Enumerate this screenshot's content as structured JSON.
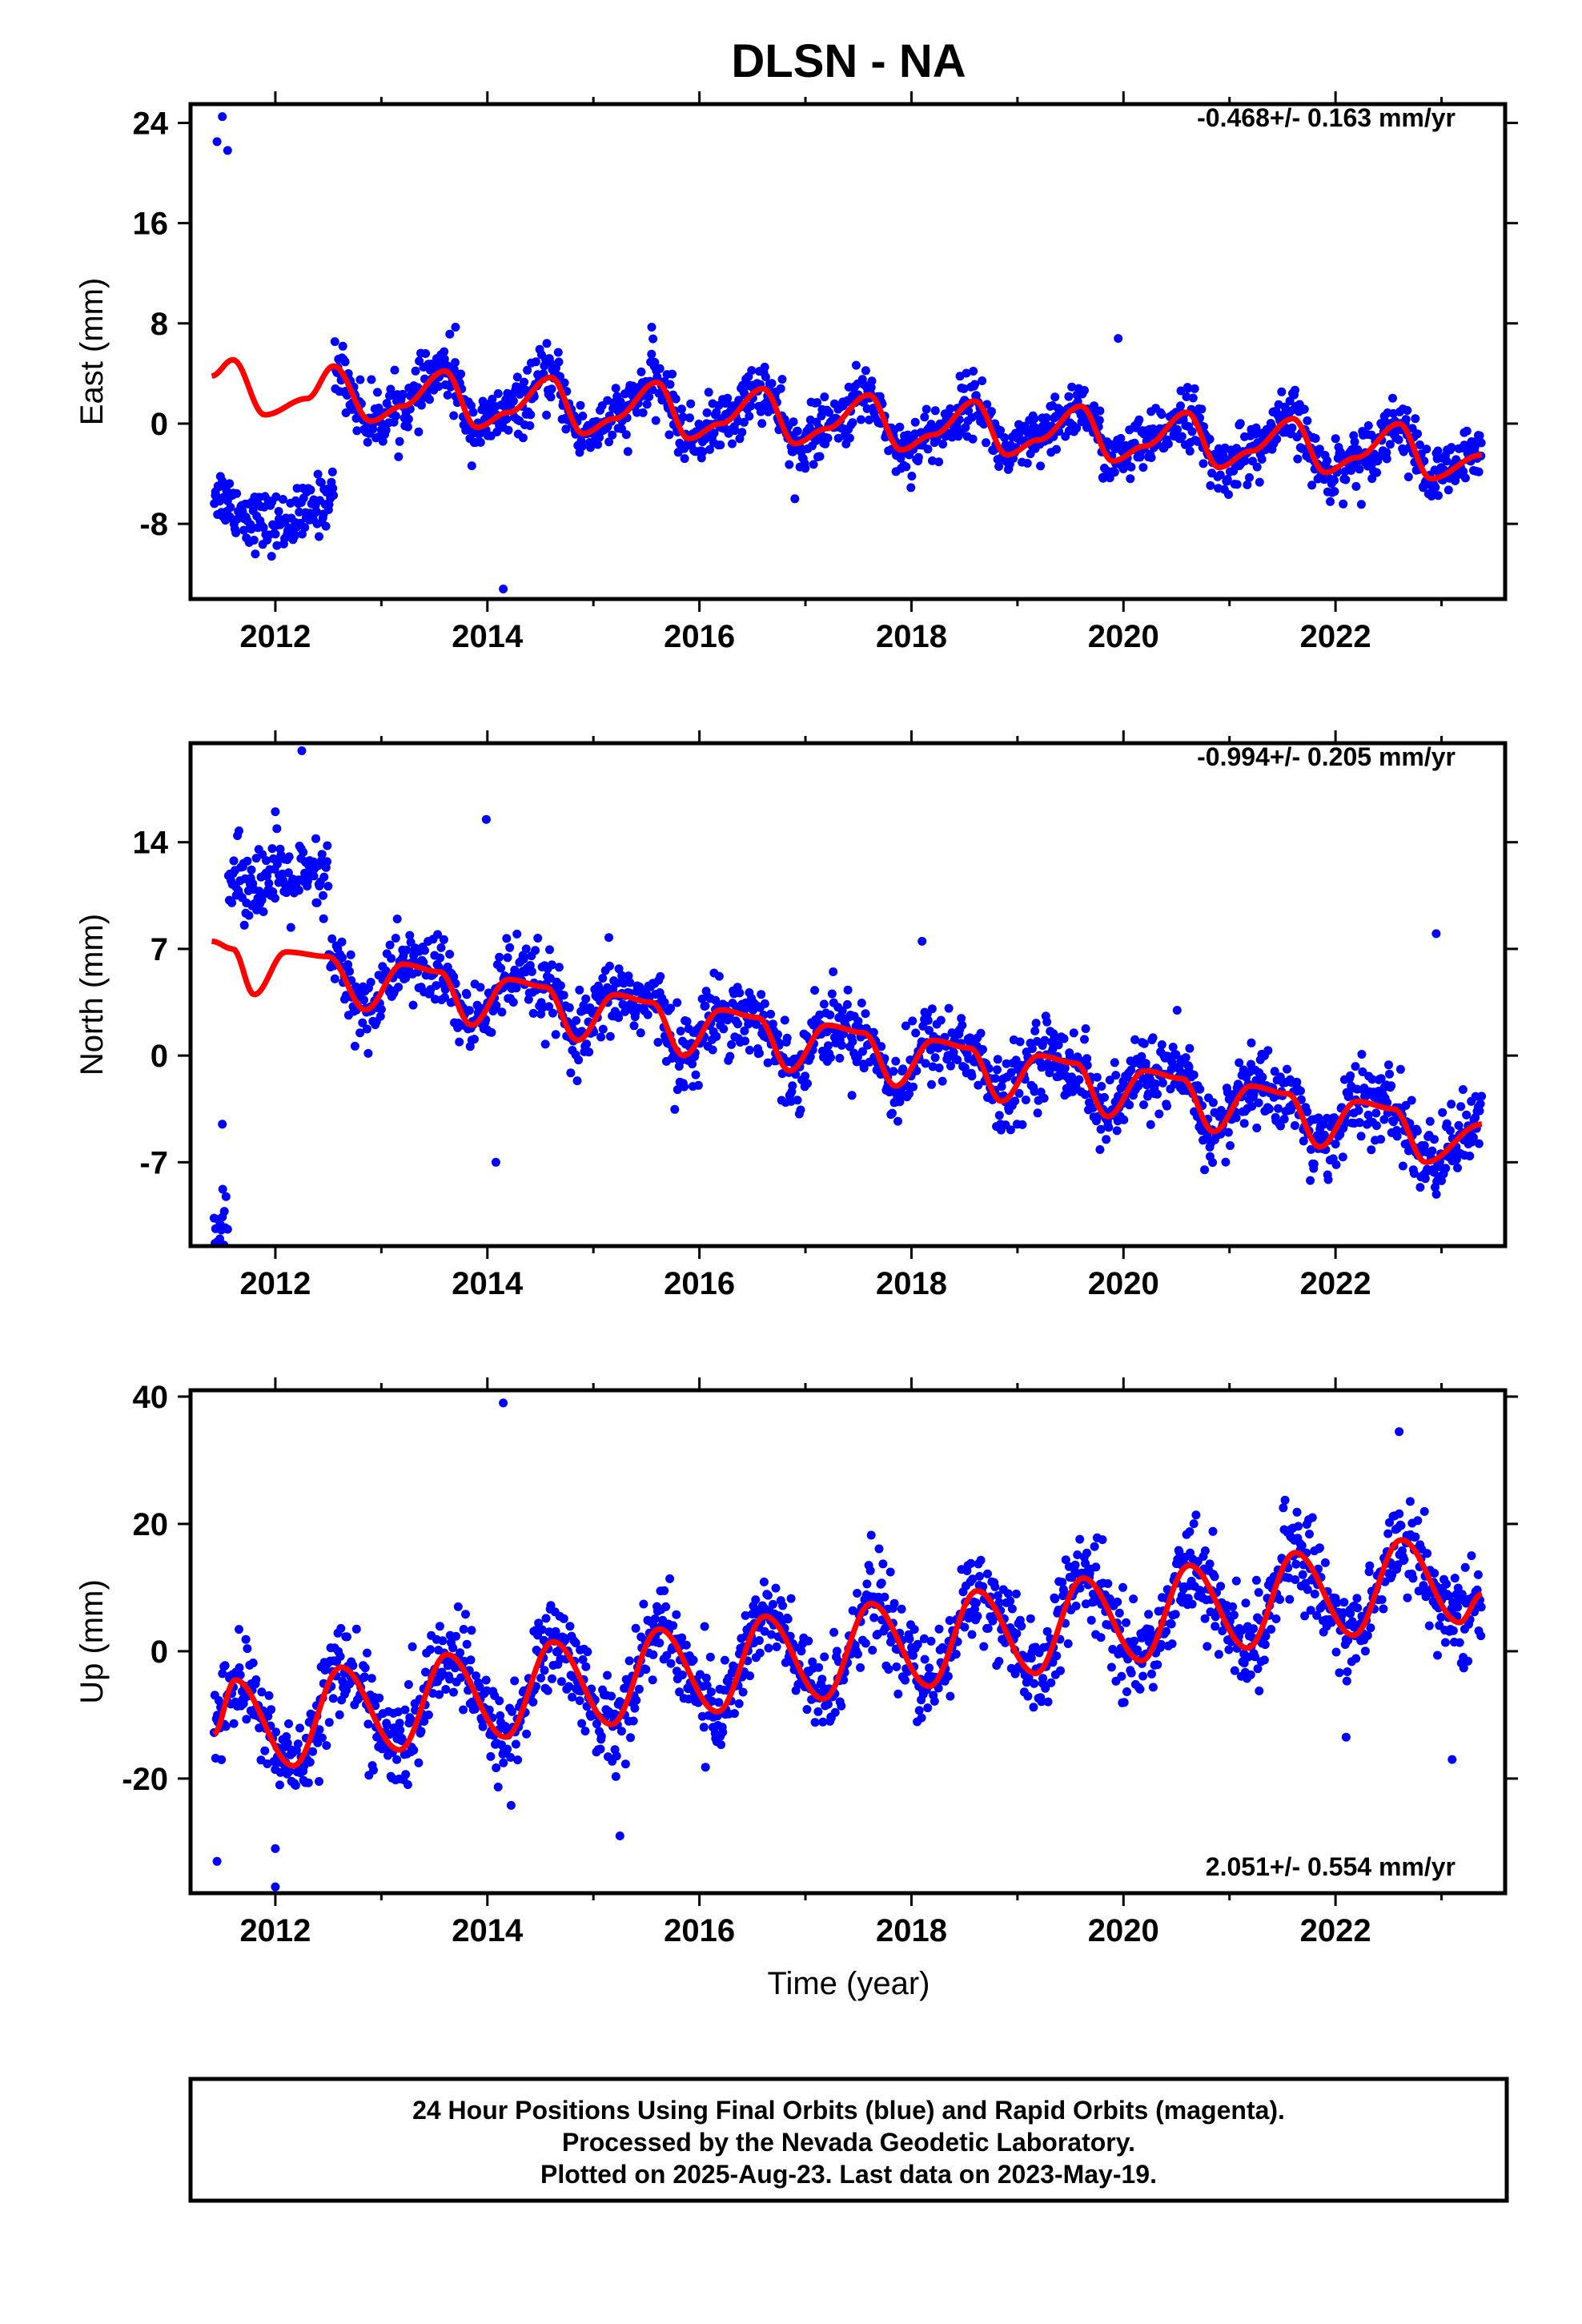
{
  "title": "DLSN - NA",
  "colors": {
    "final": "#0000ff",
    "model": "#ff0000",
    "frame": "#000000"
  },
  "xaxis": {
    "label": "Time (year)",
    "range": [
      2011.2,
      2023.6
    ],
    "ticks": [
      "2012",
      "2014",
      "2016",
      "2018",
      "2020",
      "2022"
    ]
  },
  "footer": {
    "line1": "24 Hour Positions Using Final Orbits (blue) and Rapid Orbits (magenta).",
    "line2": "Processed by the Nevada Geodetic Laboratory.",
    "line3": "Plotted on 2025-Aug-23. Last data on 2023-May-19."
  },
  "chart_data": [
    {
      "type": "scatter",
      "component": "east",
      "ylabel": "East (mm)",
      "rate": "-0.468+/- 0.163 mm/yr",
      "rate_position": "top-right",
      "ylim": [
        -14,
        25.5
      ],
      "yticks": [
        "24",
        "16",
        "8",
        "0",
        "-8"
      ],
      "xlim": [
        2011.2,
        2023.6
      ],
      "data_start": 2011.42,
      "data_end": 2023.38,
      "outliers": [
        {
          "x": 2011.5,
          "y": 24.5
        },
        {
          "x": 2011.45,
          "y": 22.5
        },
        {
          "x": 2011.55,
          "y": 21.8
        },
        {
          "x": 2014.15,
          "y": -13.2
        },
        {
          "x": 2016.9,
          "y": -6
        },
        {
          "x": 2019.95,
          "y": 6.8
        },
        {
          "x": 2013.7,
          "y": 7.7
        },
        {
          "x": 2015.55,
          "y": 7.7
        }
      ],
      "model": [
        {
          "x": 2011.4,
          "y": 3.8
        },
        {
          "x": 2011.6,
          "y": 5.1
        },
        {
          "x": 2011.9,
          "y": 0.7
        },
        {
          "x": 2012.3,
          "y": 2.0
        },
        {
          "x": 2012.55,
          "y": 4.6
        },
        {
          "x": 2012.9,
          "y": 0.2
        },
        {
          "x": 2013.2,
          "y": 1.4
        },
        {
          "x": 2013.6,
          "y": 4.2
        },
        {
          "x": 2013.9,
          "y": -0.3
        },
        {
          "x": 2014.2,
          "y": 0.9
        },
        {
          "x": 2014.6,
          "y": 3.7
        },
        {
          "x": 2014.9,
          "y": -0.8
        },
        {
          "x": 2015.2,
          "y": 0.4
        },
        {
          "x": 2015.6,
          "y": 3.3
        },
        {
          "x": 2015.9,
          "y": -1.2
        },
        {
          "x": 2016.2,
          "y": 0.0
        },
        {
          "x": 2016.6,
          "y": 2.8
        },
        {
          "x": 2016.9,
          "y": -1.6
        },
        {
          "x": 2017.2,
          "y": -0.4
        },
        {
          "x": 2017.6,
          "y": 2.3
        },
        {
          "x": 2017.9,
          "y": -2.1
        },
        {
          "x": 2018.2,
          "y": -0.9
        },
        {
          "x": 2018.6,
          "y": 1.8
        },
        {
          "x": 2018.9,
          "y": -2.5
        },
        {
          "x": 2019.2,
          "y": -1.3
        },
        {
          "x": 2019.6,
          "y": 1.4
        },
        {
          "x": 2019.9,
          "y": -3.0
        },
        {
          "x": 2020.2,
          "y": -1.8
        },
        {
          "x": 2020.6,
          "y": 0.9
        },
        {
          "x": 2020.9,
          "y": -3.5
        },
        {
          "x": 2021.2,
          "y": -2.2
        },
        {
          "x": 2021.6,
          "y": 0.4
        },
        {
          "x": 2021.9,
          "y": -3.9
        },
        {
          "x": 2022.2,
          "y": -2.7
        },
        {
          "x": 2022.6,
          "y": 0.0
        },
        {
          "x": 2022.9,
          "y": -4.4
        },
        {
          "x": 2023.38,
          "y": -2.5
        }
      ]
    },
    {
      "type": "scatter",
      "component": "north",
      "ylabel": "North (mm)",
      "rate": "-0.994+/- 0.205 mm/yr",
      "rate_position": "top-right",
      "ylim": [
        -12.5,
        20.5
      ],
      "yticks": [
        "14",
        "7",
        "0",
        "-7"
      ],
      "xlim": [
        2011.2,
        2023.6
      ],
      "data_start": 2011.42,
      "data_end": 2023.38,
      "outliers": [
        {
          "x": 2012.25,
          "y": 20
        },
        {
          "x": 2012.0,
          "y": 16
        },
        {
          "x": 2013.99,
          "y": 15.5
        },
        {
          "x": 2014.08,
          "y": -7
        },
        {
          "x": 2018.1,
          "y": 7.5
        },
        {
          "x": 2022.95,
          "y": 8.0
        },
        {
          "x": 2011.5,
          "y": -4.5
        }
      ],
      "model": [
        {
          "x": 2011.4,
          "y": 7.5
        },
        {
          "x": 2011.6,
          "y": 7.0
        },
        {
          "x": 2011.8,
          "y": 4.0
        },
        {
          "x": 2012.1,
          "y": 6.8
        },
        {
          "x": 2012.5,
          "y": 6.5
        },
        {
          "x": 2012.85,
          "y": 3.0
        },
        {
          "x": 2013.2,
          "y": 6.0
        },
        {
          "x": 2013.55,
          "y": 5.5
        },
        {
          "x": 2013.85,
          "y": 2.0
        },
        {
          "x": 2014.2,
          "y": 5.0
        },
        {
          "x": 2014.55,
          "y": 4.5
        },
        {
          "x": 2014.85,
          "y": 1.0
        },
        {
          "x": 2015.2,
          "y": 4.0
        },
        {
          "x": 2015.55,
          "y": 3.5
        },
        {
          "x": 2015.85,
          "y": 0.0
        },
        {
          "x": 2016.2,
          "y": 3.0
        },
        {
          "x": 2016.55,
          "y": 2.5
        },
        {
          "x": 2016.85,
          "y": -1.0
        },
        {
          "x": 2017.2,
          "y": 2.0
        },
        {
          "x": 2017.55,
          "y": 1.5
        },
        {
          "x": 2017.85,
          "y": -2.0
        },
        {
          "x": 2018.2,
          "y": 1.0
        },
        {
          "x": 2018.55,
          "y": 0.5
        },
        {
          "x": 2018.85,
          "y": -3.0
        },
        {
          "x": 2019.2,
          "y": 0.0
        },
        {
          "x": 2019.55,
          "y": -0.5
        },
        {
          "x": 2019.85,
          "y": -4.0
        },
        {
          "x": 2020.2,
          "y": -1.0
        },
        {
          "x": 2020.55,
          "y": -1.5
        },
        {
          "x": 2020.85,
          "y": -5.0
        },
        {
          "x": 2021.2,
          "y": -2.0
        },
        {
          "x": 2021.55,
          "y": -2.5
        },
        {
          "x": 2021.85,
          "y": -6.0
        },
        {
          "x": 2022.2,
          "y": -3.0
        },
        {
          "x": 2022.55,
          "y": -3.5
        },
        {
          "x": 2022.85,
          "y": -7.0
        },
        {
          "x": 2023.38,
          "y": -4.5
        }
      ]
    },
    {
      "type": "scatter",
      "component": "up",
      "ylabel": "Up (mm)",
      "rate": "2.051+/- 0.554 mm/yr",
      "rate_position": "bottom-right",
      "ylim": [
        -38,
        41
      ],
      "yticks": [
        "40",
        "20",
        "0",
        "-20"
      ],
      "xlim": [
        2011.2,
        2023.6
      ],
      "data_start": 2011.42,
      "data_end": 2023.38,
      "outliers": [
        {
          "x": 2014.15,
          "y": 39
        },
        {
          "x": 2022.6,
          "y": 34.5
        },
        {
          "x": 2012.0,
          "y": -37
        },
        {
          "x": 2012.0,
          "y": -31
        },
        {
          "x": 2011.45,
          "y": -33
        },
        {
          "x": 2015.25,
          "y": -29
        },
        {
          "x": 2023.1,
          "y": -17
        },
        {
          "x": 2022.1,
          "y": -13.5
        }
      ],
      "model": [
        {
          "x": 2011.42,
          "y": -13
        },
        {
          "x": 2011.62,
          "y": -4.5
        },
        {
          "x": 2012.17,
          "y": -18
        },
        {
          "x": 2012.62,
          "y": -2.5
        },
        {
          "x": 2013.17,
          "y": -15.5
        },
        {
          "x": 2013.62,
          "y": -0.5
        },
        {
          "x": 2014.17,
          "y": -13.5
        },
        {
          "x": 2014.62,
          "y": 1.5
        },
        {
          "x": 2015.17,
          "y": -11.5
        },
        {
          "x": 2015.62,
          "y": 3.5
        },
        {
          "x": 2016.17,
          "y": -9.5
        },
        {
          "x": 2016.62,
          "y": 5.5
        },
        {
          "x": 2017.17,
          "y": -7.5
        },
        {
          "x": 2017.62,
          "y": 7.5
        },
        {
          "x": 2018.17,
          "y": -5.5
        },
        {
          "x": 2018.62,
          "y": 9.5
        },
        {
          "x": 2019.17,
          "y": -3.5
        },
        {
          "x": 2019.62,
          "y": 11.5
        },
        {
          "x": 2020.17,
          "y": -1.5
        },
        {
          "x": 2020.62,
          "y": 13.5
        },
        {
          "x": 2021.17,
          "y": 0.5
        },
        {
          "x": 2021.62,
          "y": 15.5
        },
        {
          "x": 2022.17,
          "y": 2.5
        },
        {
          "x": 2022.62,
          "y": 17.5
        },
        {
          "x": 2023.17,
          "y": 4.5
        },
        {
          "x": 2023.38,
          "y": 9.0
        }
      ]
    }
  ]
}
